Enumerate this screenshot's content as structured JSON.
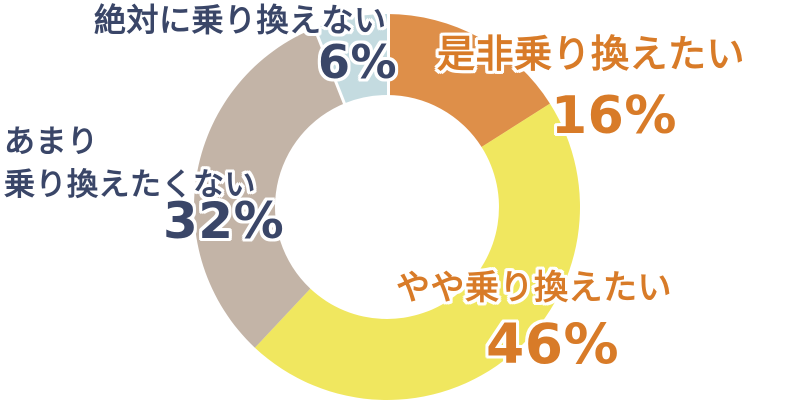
{
  "chart_data": {
    "type": "pie",
    "subtype": "donut",
    "title": "",
    "unit": "%",
    "start_angle_deg": 0,
    "direction": "clockwise",
    "inner_radius_ratio": 0.58,
    "legend_position": "around-slices",
    "slices": [
      {
        "label": "是非乗り換えたい",
        "value": 16,
        "pct": "16%",
        "color": "#DE8F49",
        "text_color": "orange"
      },
      {
        "label": "やや乗り換えたい",
        "value": 46,
        "pct": "46%",
        "color": "#F0E75F",
        "text_color": "orange"
      },
      {
        "label": "あまり\n乗り換えたくない",
        "value": 32,
        "pct": "32%",
        "color": "#C3B4A7",
        "text_color": "navy"
      },
      {
        "label": "絶対に乗り換えない",
        "value": 6,
        "pct": "6%",
        "color": "#C4DBE0",
        "text_color": "navy",
        "white_edge": true
      }
    ]
  },
  "theme": {
    "background": "#FFFFFF",
    "orange_text": "#D87B28",
    "navy_text": "#3A4668",
    "outline": "#FFFFFF"
  }
}
